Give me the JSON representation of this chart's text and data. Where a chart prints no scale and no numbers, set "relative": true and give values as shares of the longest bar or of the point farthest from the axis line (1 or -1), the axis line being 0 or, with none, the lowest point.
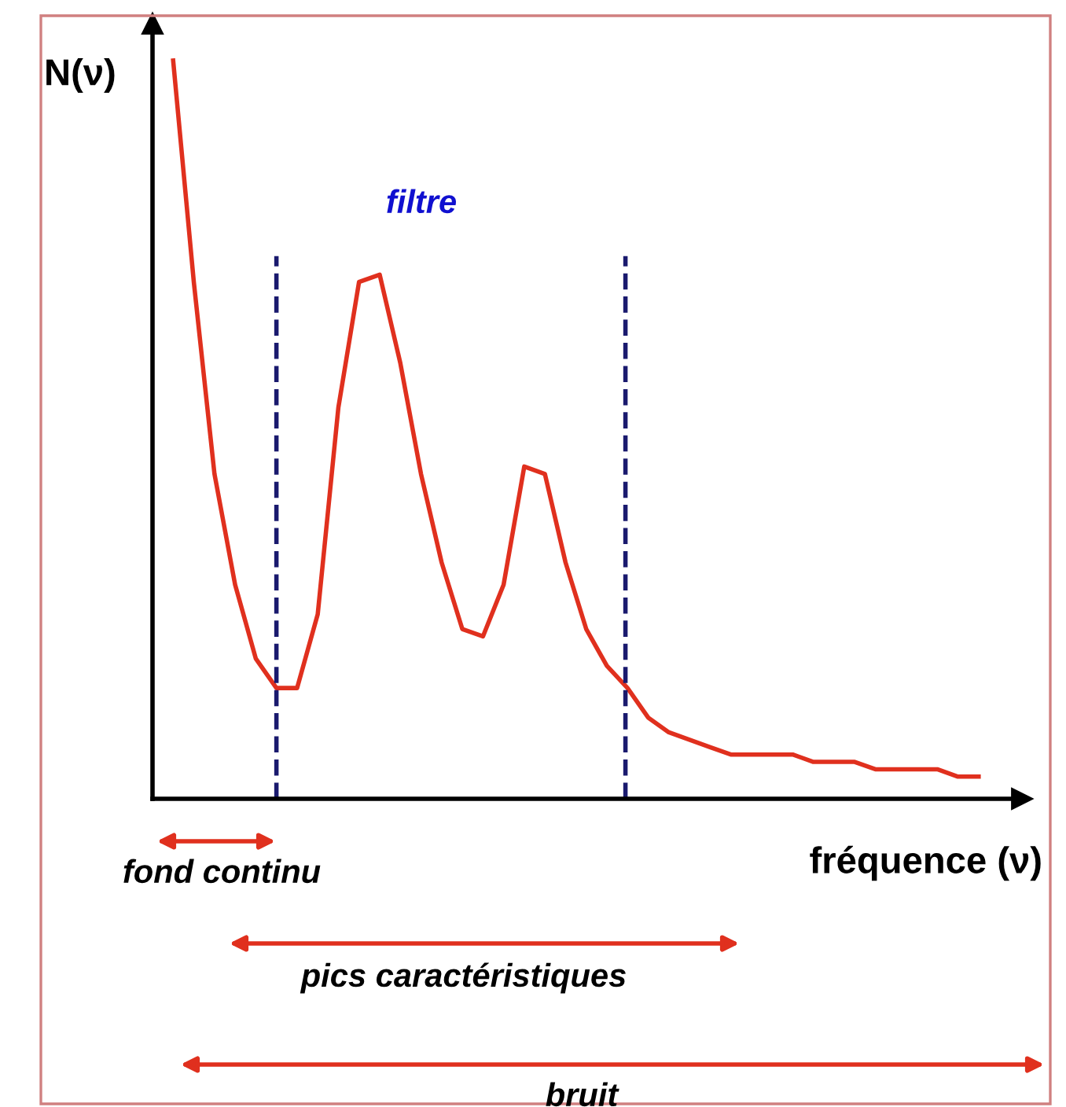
{
  "chart_data": {
    "type": "line",
    "relative": true,
    "ylabel": "N(ν)",
    "xlabel": "fréquence (ν)",
    "categories": [
      null,
      null,
      null,
      null,
      null,
      null,
      null,
      null,
      null,
      null,
      null,
      null,
      null,
      null,
      null,
      null,
      null,
      null,
      null,
      null,
      null,
      null,
      null,
      null,
      null,
      null,
      null,
      null,
      null,
      null,
      null,
      null,
      null,
      null,
      null,
      null,
      null,
      null,
      null,
      null
    ],
    "series": [
      {
        "color": "#e0301e",
        "values": [
          1.0,
          0.7,
          0.44,
          0.29,
          0.19,
          0.15,
          0.15,
          0.25,
          0.53,
          0.7,
          0.71,
          0.59,
          0.44,
          0.32,
          0.23,
          0.22,
          0.29,
          0.45,
          0.44,
          0.32,
          0.23,
          0.18,
          0.15,
          0.11,
          0.09,
          0.08,
          0.07,
          0.06,
          0.06,
          0.06,
          0.06,
          0.05,
          0.05,
          0.05,
          0.04,
          0.04,
          0.04,
          0.04,
          0.03,
          0.03
        ]
      }
    ],
    "annotations": [
      "filtre",
      "fond continu",
      "pics caractéristiques",
      "bruit"
    ],
    "grid": false,
    "legend": false,
    "marker": "none",
    "line_style": "solid"
  }
}
